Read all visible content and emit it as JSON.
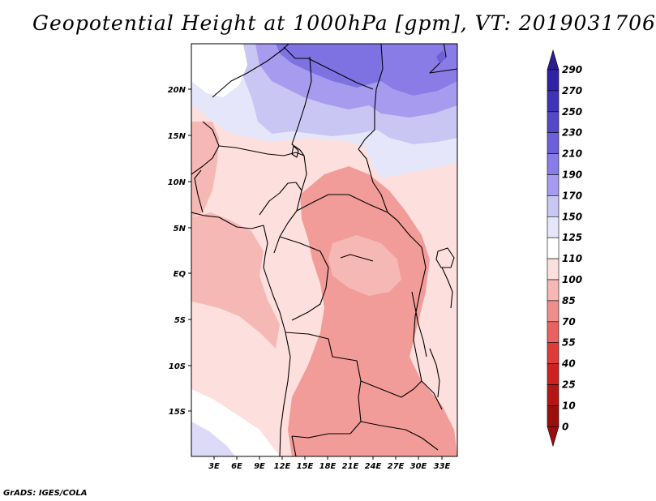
{
  "title": "Geopotential Height at 1000hPa [gpm], VT: 2019031706",
  "credit": "GrADS: IGES/COLA",
  "map": {
    "lat_labels": [
      "20N",
      "15N",
      "10N",
      "5N",
      "EQ",
      "5S",
      "10S",
      "15S"
    ],
    "lon_labels": [
      "3E",
      "6E",
      "9E",
      "12E",
      "15E",
      "18E",
      "21E",
      "24E",
      "27E",
      "30E",
      "33E"
    ]
  },
  "colorbar": {
    "levels": [
      "290",
      "270",
      "250",
      "230",
      "210",
      "190",
      "170",
      "150",
      "125",
      "110",
      "100",
      "85",
      "70",
      "55",
      "40",
      "25",
      "10",
      "0"
    ],
    "colors": [
      "#2b1d8c",
      "#2f22a6",
      "#3f34b8",
      "#5548c8",
      "#6b60d8",
      "#8a7ce6",
      "#a79bef",
      "#c9c6f4",
      "#e6e6fb",
      "#ffffff",
      "#fde0de",
      "#f6b8b5",
      "#ef8f8c",
      "#e8625f",
      "#de3c3a",
      "#cc2322",
      "#b31615",
      "#9a0f0e"
    ]
  },
  "colors": {
    "land_light": "#fde0de",
    "land_mid": "#f6b8b5",
    "land_dark": "#f19c98",
    "north_light": "#dcdaf7",
    "north_mid": "#b2acef",
    "north_dark": "#7e72e2",
    "border": "#000000"
  }
}
